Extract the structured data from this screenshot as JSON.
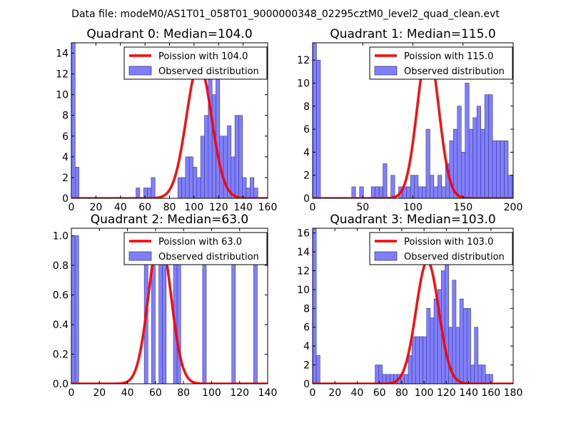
{
  "figure": {
    "title": "Data file: modeM0/AS1T01_058T01_9000000348_02295cztM0_level2_quad_clean.evt"
  },
  "colors": {
    "bar_fill": "#7f7fff",
    "bar_edge": "#3f3f7f",
    "poisson": "#ff0000",
    "axis": "#000000"
  },
  "chart_data": [
    {
      "type": "bar",
      "title": "Quadrant 0: Median=104.0",
      "median": 104.0,
      "legend": [
        "Poission with 104.0",
        "Observed distribution"
      ],
      "legend_position": "top-right",
      "xlim": [
        0,
        160
      ],
      "ylim": [
        0,
        15
      ],
      "xticks": [
        0,
        20,
        40,
        60,
        80,
        100,
        120,
        140,
        160
      ],
      "xtick_labels": [
        "0",
        "20",
        "40",
        "60",
        "80",
        "100",
        "120",
        "140",
        "160"
      ],
      "yticks": [
        0,
        2,
        4,
        6,
        8,
        10,
        12,
        14
      ],
      "ytick_labels": [
        "0",
        "2",
        "4",
        "6",
        "8",
        "10",
        "12",
        "14"
      ],
      "bin_width": 3.1,
      "bins": [
        [
          0,
          15
        ],
        [
          3.1,
          3
        ],
        [
          52.7,
          1
        ],
        [
          58.9,
          1
        ],
        [
          62,
          1
        ],
        [
          65.1,
          2
        ],
        [
          86.8,
          2
        ],
        [
          89.9,
          2
        ],
        [
          93,
          4
        ],
        [
          96.1,
          4
        ],
        [
          99.2,
          3
        ],
        [
          102.3,
          2
        ],
        [
          105.4,
          6
        ],
        [
          108.5,
          8
        ],
        [
          111.6,
          12
        ],
        [
          114.7,
          10
        ],
        [
          117.8,
          12
        ],
        [
          120.9,
          6
        ],
        [
          124,
          6
        ],
        [
          127.1,
          7
        ],
        [
          130.2,
          4
        ],
        [
          133.3,
          8
        ],
        [
          136.4,
          8
        ],
        [
          139.5,
          2
        ],
        [
          142.6,
          1
        ],
        [
          145.7,
          2
        ],
        [
          148.8,
          1
        ]
      ],
      "poisson_peak": 13
    },
    {
      "type": "bar",
      "title": "Quadrant 1: Median=115.0",
      "median": 115.0,
      "legend": [
        "Poission with 115.0",
        "Observed distribution"
      ],
      "legend_position": "top-right",
      "xlim": [
        0,
        200
      ],
      "ylim": [
        0,
        13.5
      ],
      "xticks": [
        0,
        50,
        100,
        150,
        200
      ],
      "xtick_labels": [
        "0",
        "50",
        "100",
        "150",
        "200"
      ],
      "yticks": [
        0,
        2,
        4,
        6,
        8,
        10,
        12
      ],
      "ytick_labels": [
        "0",
        "2",
        "4",
        "6",
        "8",
        "10",
        "12"
      ],
      "bin_width": 3.9,
      "bins": [
        [
          0,
          13.5
        ],
        [
          3.9,
          12
        ],
        [
          39,
          1
        ],
        [
          46.8,
          1
        ],
        [
          58.5,
          1
        ],
        [
          62.4,
          1
        ],
        [
          66.3,
          1
        ],
        [
          70.2,
          3
        ],
        [
          78,
          2
        ],
        [
          85.8,
          1
        ],
        [
          89.7,
          1
        ],
        [
          93.6,
          1
        ],
        [
          97.5,
          2
        ],
        [
          101.4,
          2
        ],
        [
          105.3,
          1
        ],
        [
          109.2,
          1
        ],
        [
          113.1,
          6
        ],
        [
          117,
          2
        ],
        [
          120.9,
          1
        ],
        [
          124.8,
          2
        ],
        [
          128.7,
          1
        ],
        [
          132.6,
          3
        ],
        [
          136.5,
          5
        ],
        [
          140.4,
          6
        ],
        [
          144.3,
          8
        ],
        [
          148.2,
          4
        ],
        [
          152.1,
          10
        ],
        [
          156,
          6
        ],
        [
          159.9,
          7
        ],
        [
          163.8,
          8
        ],
        [
          167.7,
          6
        ],
        [
          171.6,
          9
        ],
        [
          175.5,
          9
        ],
        [
          179.4,
          5
        ],
        [
          183.3,
          5
        ],
        [
          187.2,
          5
        ],
        [
          191.1,
          5
        ],
        [
          195,
          2
        ],
        [
          198.9,
          2
        ]
      ],
      "poisson_peak": 13
    },
    {
      "type": "bar",
      "title": "Quadrant 2: Median=63.0",
      "median": 63.0,
      "legend": [
        "Poission with 63.0",
        "Observed distribution"
      ],
      "legend_position": "top-right",
      "xlim": [
        0,
        140
      ],
      "ylim": [
        0,
        1.05
      ],
      "xticks": [
        0,
        20,
        40,
        60,
        80,
        100,
        120,
        140
      ],
      "xtick_labels": [
        "0",
        "20",
        "40",
        "60",
        "80",
        "100",
        "120",
        "140"
      ],
      "yticks": [
        0,
        0.2,
        0.4,
        0.6,
        0.8,
        1.0
      ],
      "ytick_labels": [
        "0.0",
        "0.2",
        "0.4",
        "0.6",
        "0.8",
        "1.0"
      ],
      "bin_width": 2.6,
      "bins": [
        [
          0,
          1
        ],
        [
          2.6,
          1
        ],
        [
          52,
          1
        ],
        [
          57.2,
          1
        ],
        [
          62.4,
          1
        ],
        [
          65,
          1
        ],
        [
          72.8,
          1
        ],
        [
          75.4,
          1
        ],
        [
          93.6,
          1
        ],
        [
          114.4,
          1
        ],
        [
          130,
          1
        ]
      ],
      "poisson_peak": 1.0
    },
    {
      "type": "bar",
      "title": "Quadrant 3: Median=103.0",
      "median": 103.0,
      "legend": [
        "Poission with 103.0",
        "Observed distribution"
      ],
      "legend_position": "top-right",
      "xlim": [
        0,
        180
      ],
      "ylim": [
        0,
        16.5
      ],
      "xticks": [
        0,
        20,
        40,
        60,
        80,
        100,
        120,
        140,
        160,
        180
      ],
      "xtick_labels": [
        "0",
        "20",
        "40",
        "60",
        "80",
        "100",
        "120",
        "140",
        "160",
        "180"
      ],
      "yticks": [
        0,
        2,
        4,
        6,
        8,
        10,
        12,
        14,
        16
      ],
      "ytick_labels": [
        "0",
        "2",
        "4",
        "6",
        "8",
        "10",
        "12",
        "14",
        "16"
      ],
      "bin_width": 3.3,
      "bins": [
        [
          0,
          16.5
        ],
        [
          3.3,
          3
        ],
        [
          56.1,
          2
        ],
        [
          59.4,
          2
        ],
        [
          62.7,
          1
        ],
        [
          66,
          1
        ],
        [
          69.3,
          1
        ],
        [
          72.6,
          1
        ],
        [
          75.9,
          1
        ],
        [
          79.2,
          1
        ],
        [
          82.5,
          1
        ],
        [
          85.8,
          3
        ],
        [
          89.1,
          5
        ],
        [
          92.4,
          5
        ],
        [
          95.7,
          5
        ],
        [
          99,
          5
        ],
        [
          102.3,
          8
        ],
        [
          105.6,
          7
        ],
        [
          108.9,
          9
        ],
        [
          112.2,
          10
        ],
        [
          115.5,
          12
        ],
        [
          118.8,
          15
        ],
        [
          122.1,
          6
        ],
        [
          125.4,
          11
        ],
        [
          128.7,
          6
        ],
        [
          132,
          9
        ],
        [
          135.3,
          8
        ],
        [
          138.6,
          8
        ],
        [
          141.9,
          2
        ],
        [
          145.2,
          6
        ],
        [
          148.5,
          2
        ],
        [
          151.8,
          2
        ],
        [
          155.1,
          1
        ],
        [
          158.4,
          1
        ]
      ],
      "poisson_peak": 13
    }
  ]
}
